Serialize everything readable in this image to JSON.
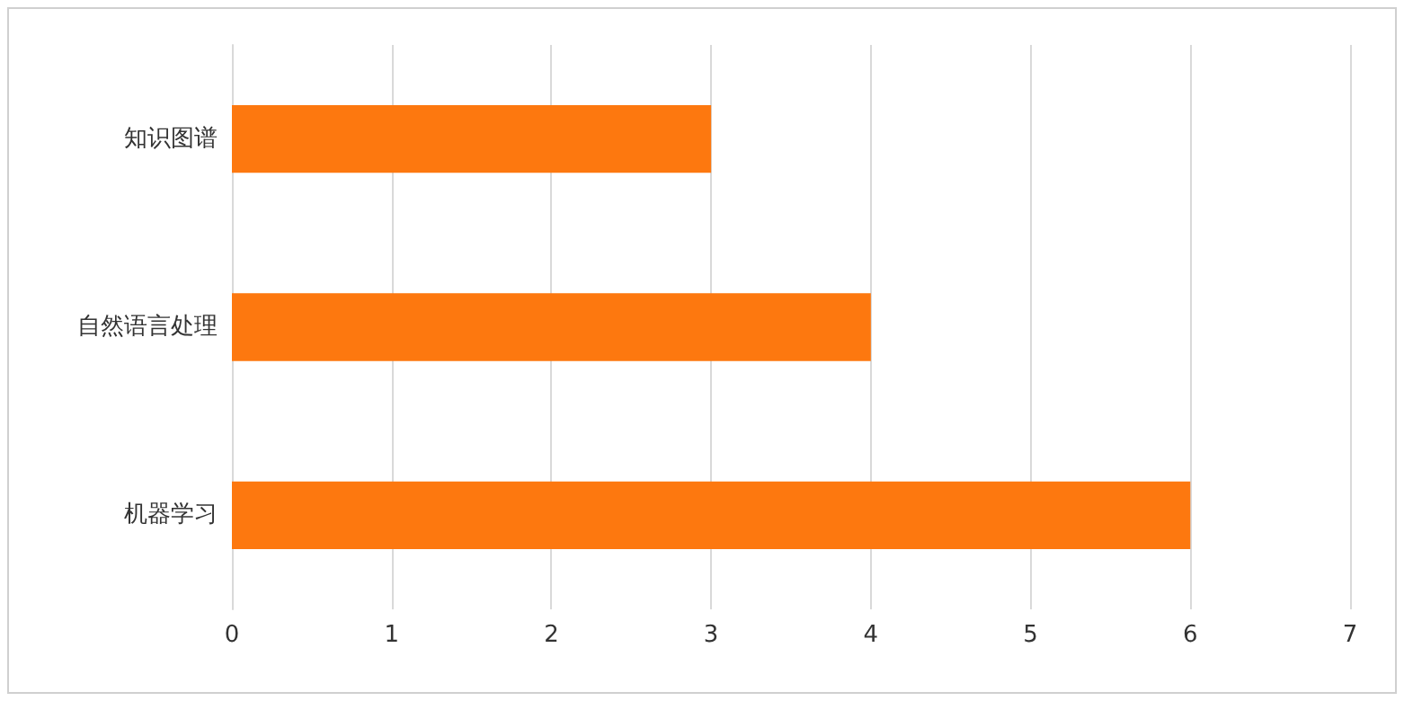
{
  "chart_data": {
    "type": "bar",
    "orientation": "horizontal",
    "categories": [
      "知识图谱",
      "自然语言处理",
      "机器学习"
    ],
    "values": [
      3,
      4,
      6
    ],
    "color": "#fd780f",
    "xlim": [
      0,
      7
    ],
    "xticks": [
      0,
      1,
      2,
      3,
      4,
      5,
      6,
      7
    ],
    "grid": "x"
  }
}
